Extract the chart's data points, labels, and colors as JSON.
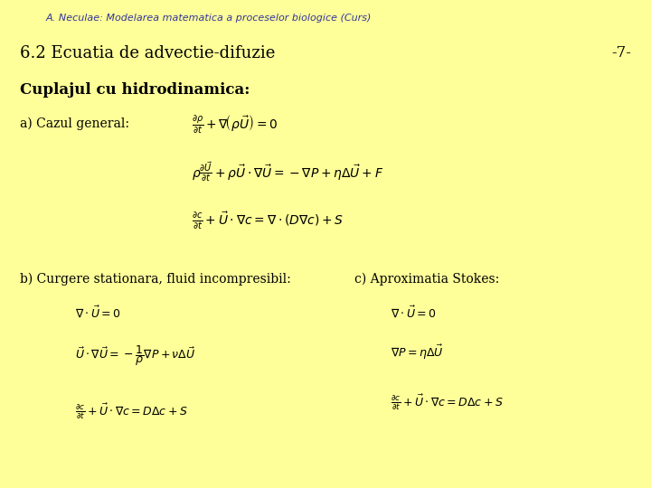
{
  "background_color": "#ffff99",
  "header_text": "A. Neculae: Modelarea matematica a proceselor biologice (Curs)",
  "header_fontsize": 8,
  "header_color": "#333399",
  "title_text": "6.2 Ecuatia de advectie-difuzie",
  "title_fontsize": 13,
  "title_color": "#000000",
  "page_number": "-7-",
  "page_number_fontsize": 12,
  "page_number_color": "#000000",
  "section_title": "Cuplajul cu hidrodinamica:",
  "section_title_fontsize": 12,
  "section_title_color": "#000000",
  "label_a": "a) Cazul general:",
  "label_b": "b) Curgere stationara, fluid incompresibil:",
  "label_c": "c) Aproximatia Stokes:",
  "label_fontsize": 10,
  "label_color": "#000000",
  "eq_color": "#000000",
  "eq_fontsize": 10,
  "eq_fontsize_small": 9
}
